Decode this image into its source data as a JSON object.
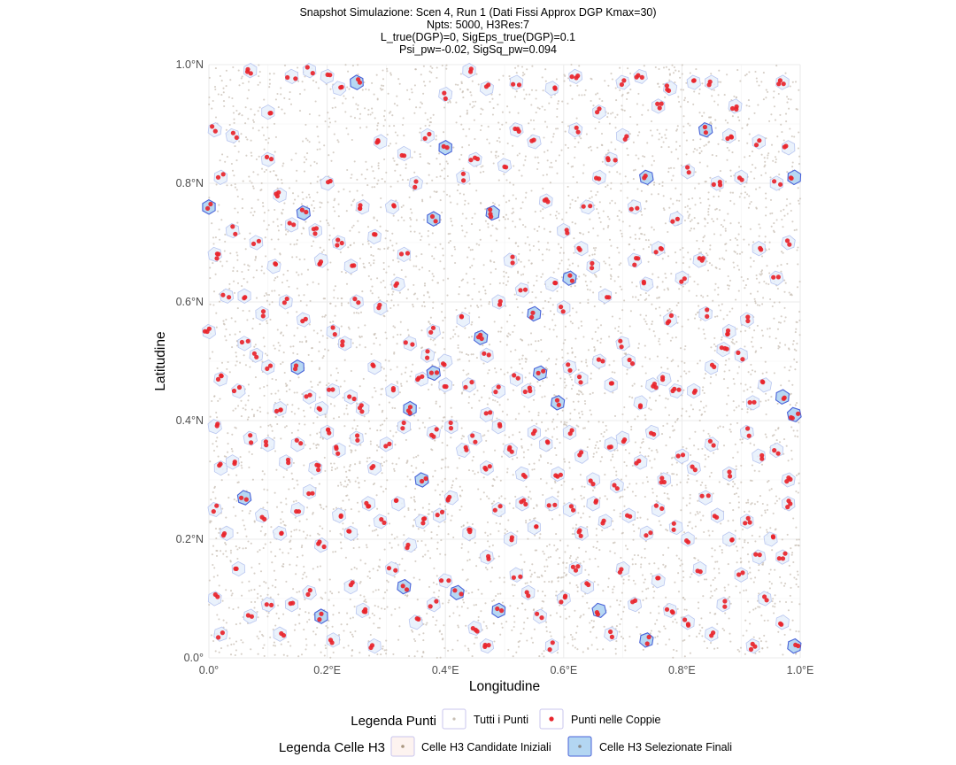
{
  "chart_data": {
    "type": "scatter",
    "title_lines": [
      "Snapshot Simulazione: Scen 4, Run 1 (Dati Fissi Approx DGP Kmax=30)",
      "Npts: 5000, H3Res:7",
      "L_true(DGP)=0, SigEps_true(DGP)=0.1",
      "Psi_pw=-0.02, SigSq_pw=0.094"
    ],
    "xlabel": "Longitudine",
    "ylabel": "Latitudine",
    "xlim": [
      0,
      1
    ],
    "ylim": [
      0,
      1
    ],
    "x_ticks": [
      {
        "value": 0.0,
        "label": "0.0°"
      },
      {
        "value": 0.2,
        "label": "0.2°E"
      },
      {
        "value": 0.4,
        "label": "0.4°E"
      },
      {
        "value": 0.6,
        "label": "0.6°E"
      },
      {
        "value": 0.8,
        "label": "0.8°E"
      },
      {
        "value": 1.0,
        "label": "1.0°E"
      }
    ],
    "y_ticks": [
      {
        "value": 0.0,
        "label": "0.0°"
      },
      {
        "value": 0.2,
        "label": "0.2°N"
      },
      {
        "value": 0.4,
        "label": "0.4°N"
      },
      {
        "value": 0.6,
        "label": "0.6°N"
      },
      {
        "value": 0.8,
        "label": "0.8°N"
      },
      {
        "value": 1.0,
        "label": "1.0°N"
      }
    ],
    "grid": true,
    "legend": {
      "placement": "bottom",
      "points_title": "Legenda Punti",
      "points_entries": [
        "Tutti i Punti",
        "Punti nelle Coppie"
      ],
      "cells_title": "Legenda Celle H3",
      "cells_entries": [
        "Celle H3 Candidate Iniziali",
        "Celle H3 Selezionate Finali"
      ]
    },
    "all_points_count": 5000,
    "colors": {
      "all_points": "#c8bfb4",
      "pair_points": "#e8242b",
      "candidate_cell_fill": "#e6f0fb",
      "candidate_cell_stroke": "#b9c6f0",
      "selected_cell_fill": "#b3d6f2",
      "selected_cell_stroke": "#4a63d8",
      "grid": "#ebebeb"
    },
    "pair_cells": [
      [
        0.0,
        0.76
      ],
      [
        0.02,
        0.81
      ],
      [
        0.04,
        0.72
      ],
      [
        0.06,
        0.61
      ],
      [
        0.08,
        0.7
      ],
      [
        0.1,
        0.84
      ],
      [
        0.12,
        0.78
      ],
      [
        0.14,
        0.73
      ],
      [
        0.16,
        0.75
      ],
      [
        0.18,
        0.72
      ],
      [
        0.2,
        0.8
      ],
      [
        0.22,
        0.7
      ],
      [
        0.24,
        0.66
      ],
      [
        0.26,
        0.76
      ],
      [
        0.28,
        0.71
      ],
      [
        0.31,
        0.76
      ],
      [
        0.33,
        0.68
      ],
      [
        0.35,
        0.8
      ],
      [
        0.38,
        0.74
      ],
      [
        0.4,
        0.86
      ],
      [
        0.43,
        0.81
      ],
      [
        0.45,
        0.84
      ],
      [
        0.48,
        0.75
      ],
      [
        0.5,
        0.83
      ],
      [
        0.52,
        0.89
      ],
      [
        0.55,
        0.87
      ],
      [
        0.57,
        0.77
      ],
      [
        0.6,
        0.72
      ],
      [
        0.62,
        0.89
      ],
      [
        0.64,
        0.76
      ],
      [
        0.66,
        0.81
      ],
      [
        0.68,
        0.84
      ],
      [
        0.7,
        0.88
      ],
      [
        0.72,
        0.76
      ],
      [
        0.74,
        0.81
      ],
      [
        0.76,
        0.93
      ],
      [
        0.79,
        0.74
      ],
      [
        0.81,
        0.82
      ],
      [
        0.84,
        0.89
      ],
      [
        0.86,
        0.8
      ],
      [
        0.88,
        0.88
      ],
      [
        0.9,
        0.81
      ],
      [
        0.93,
        0.87
      ],
      [
        0.96,
        0.8
      ],
      [
        0.98,
        0.86
      ],
      [
        0.99,
        0.81
      ],
      [
        0.01,
        0.89
      ],
      [
        0.04,
        0.88
      ],
      [
        0.07,
        0.99
      ],
      [
        0.1,
        0.92
      ],
      [
        0.14,
        0.98
      ],
      [
        0.17,
        0.99
      ],
      [
        0.2,
        0.98
      ],
      [
        0.22,
        0.96
      ],
      [
        0.25,
        0.97
      ],
      [
        0.29,
        0.87
      ],
      [
        0.33,
        0.85
      ],
      [
        0.37,
        0.88
      ],
      [
        0.4,
        0.95
      ],
      [
        0.44,
        0.99
      ],
      [
        0.47,
        0.96
      ],
      [
        0.52,
        0.97
      ],
      [
        0.58,
        0.96
      ],
      [
        0.62,
        0.98
      ],
      [
        0.66,
        0.92
      ],
      [
        0.7,
        0.97
      ],
      [
        0.73,
        0.98
      ],
      [
        0.78,
        0.96
      ],
      [
        0.82,
        0.97
      ],
      [
        0.85,
        0.97
      ],
      [
        0.89,
        0.93
      ],
      [
        0.97,
        0.97
      ],
      [
        0.01,
        0.68
      ],
      [
        0.03,
        0.61
      ],
      [
        0.06,
        0.53
      ],
      [
        0.09,
        0.58
      ],
      [
        0.11,
        0.66
      ],
      [
        0.13,
        0.6
      ],
      [
        0.16,
        0.57
      ],
      [
        0.19,
        0.67
      ],
      [
        0.21,
        0.55
      ],
      [
        0.23,
        0.53
      ],
      [
        0.25,
        0.6
      ],
      [
        0.29,
        0.59
      ],
      [
        0.32,
        0.63
      ],
      [
        0.34,
        0.53
      ],
      [
        0.37,
        0.51
      ],
      [
        0.38,
        0.55
      ],
      [
        0.4,
        0.5
      ],
      [
        0.43,
        0.57
      ],
      [
        0.46,
        0.54
      ],
      [
        0.47,
        0.51
      ],
      [
        0.49,
        0.6
      ],
      [
        0.51,
        0.67
      ],
      [
        0.53,
        0.62
      ],
      [
        0.55,
        0.58
      ],
      [
        0.58,
        0.63
      ],
      [
        0.6,
        0.59
      ],
      [
        0.61,
        0.64
      ],
      [
        0.63,
        0.69
      ],
      [
        0.65,
        0.66
      ],
      [
        0.67,
        0.61
      ],
      [
        0.7,
        0.53
      ],
      [
        0.72,
        0.67
      ],
      [
        0.74,
        0.63
      ],
      [
        0.76,
        0.69
      ],
      [
        0.78,
        0.57
      ],
      [
        0.8,
        0.64
      ],
      [
        0.83,
        0.67
      ],
      [
        0.84,
        0.58
      ],
      [
        0.88,
        0.55
      ],
      [
        0.91,
        0.57
      ],
      [
        0.93,
        0.69
      ],
      [
        0.96,
        0.64
      ],
      [
        0.98,
        0.7
      ],
      [
        0.0,
        0.55
      ],
      [
        0.02,
        0.47
      ],
      [
        0.05,
        0.45
      ],
      [
        0.08,
        0.51
      ],
      [
        0.1,
        0.49
      ],
      [
        0.12,
        0.42
      ],
      [
        0.15,
        0.49
      ],
      [
        0.17,
        0.44
      ],
      [
        0.19,
        0.42
      ],
      [
        0.21,
        0.45
      ],
      [
        0.24,
        0.44
      ],
      [
        0.26,
        0.42
      ],
      [
        0.28,
        0.49
      ],
      [
        0.31,
        0.45
      ],
      [
        0.34,
        0.42
      ],
      [
        0.36,
        0.47
      ],
      [
        0.38,
        0.48
      ],
      [
        0.4,
        0.46
      ],
      [
        0.44,
        0.46
      ],
      [
        0.47,
        0.41
      ],
      [
        0.49,
        0.45
      ],
      [
        0.52,
        0.47
      ],
      [
        0.54,
        0.45
      ],
      [
        0.56,
        0.48
      ],
      [
        0.59,
        0.43
      ],
      [
        0.61,
        0.49
      ],
      [
        0.63,
        0.47
      ],
      [
        0.66,
        0.5
      ],
      [
        0.68,
        0.46
      ],
      [
        0.71,
        0.5
      ],
      [
        0.73,
        0.43
      ],
      [
        0.75,
        0.46
      ],
      [
        0.77,
        0.47
      ],
      [
        0.79,
        0.45
      ],
      [
        0.82,
        0.45
      ],
      [
        0.85,
        0.49
      ],
      [
        0.87,
        0.52
      ],
      [
        0.9,
        0.51
      ],
      [
        0.92,
        0.43
      ],
      [
        0.94,
        0.46
      ],
      [
        0.97,
        0.44
      ],
      [
        0.99,
        0.41
      ],
      [
        0.01,
        0.39
      ],
      [
        0.02,
        0.32
      ],
      [
        0.04,
        0.33
      ],
      [
        0.07,
        0.37
      ],
      [
        0.1,
        0.36
      ],
      [
        0.13,
        0.33
      ],
      [
        0.15,
        0.36
      ],
      [
        0.18,
        0.32
      ],
      [
        0.2,
        0.38
      ],
      [
        0.22,
        0.35
      ],
      [
        0.25,
        0.37
      ],
      [
        0.28,
        0.32
      ],
      [
        0.3,
        0.36
      ],
      [
        0.33,
        0.39
      ],
      [
        0.36,
        0.3
      ],
      [
        0.38,
        0.38
      ],
      [
        0.41,
        0.39
      ],
      [
        0.43,
        0.35
      ],
      [
        0.45,
        0.37
      ],
      [
        0.47,
        0.32
      ],
      [
        0.49,
        0.39
      ],
      [
        0.51,
        0.35
      ],
      [
        0.53,
        0.31
      ],
      [
        0.55,
        0.38
      ],
      [
        0.57,
        0.36
      ],
      [
        0.59,
        0.31
      ],
      [
        0.61,
        0.38
      ],
      [
        0.63,
        0.34
      ],
      [
        0.65,
        0.3
      ],
      [
        0.68,
        0.36
      ],
      [
        0.7,
        0.37
      ],
      [
        0.73,
        0.33
      ],
      [
        0.75,
        0.38
      ],
      [
        0.77,
        0.3
      ],
      [
        0.8,
        0.34
      ],
      [
        0.82,
        0.32
      ],
      [
        0.85,
        0.36
      ],
      [
        0.88,
        0.31
      ],
      [
        0.91,
        0.38
      ],
      [
        0.93,
        0.34
      ],
      [
        0.96,
        0.35
      ],
      [
        0.98,
        0.3
      ],
      [
        0.01,
        0.25
      ],
      [
        0.03,
        0.21
      ],
      [
        0.06,
        0.27
      ],
      [
        0.09,
        0.24
      ],
      [
        0.12,
        0.21
      ],
      [
        0.15,
        0.25
      ],
      [
        0.17,
        0.28
      ],
      [
        0.19,
        0.19
      ],
      [
        0.22,
        0.24
      ],
      [
        0.24,
        0.21
      ],
      [
        0.27,
        0.26
      ],
      [
        0.29,
        0.23
      ],
      [
        0.32,
        0.26
      ],
      [
        0.34,
        0.19
      ],
      [
        0.36,
        0.23
      ],
      [
        0.39,
        0.24
      ],
      [
        0.41,
        0.27
      ],
      [
        0.44,
        0.21
      ],
      [
        0.47,
        0.17
      ],
      [
        0.49,
        0.25
      ],
      [
        0.51,
        0.2
      ],
      [
        0.53,
        0.26
      ],
      [
        0.55,
        0.22
      ],
      [
        0.58,
        0.26
      ],
      [
        0.61,
        0.25
      ],
      [
        0.63,
        0.21
      ],
      [
        0.65,
        0.26
      ],
      [
        0.67,
        0.23
      ],
      [
        0.69,
        0.29
      ],
      [
        0.71,
        0.24
      ],
      [
        0.74,
        0.21
      ],
      [
        0.76,
        0.25
      ],
      [
        0.79,
        0.22
      ],
      [
        0.81,
        0.2
      ],
      [
        0.84,
        0.27
      ],
      [
        0.86,
        0.24
      ],
      [
        0.88,
        0.2
      ],
      [
        0.91,
        0.23
      ],
      [
        0.93,
        0.17
      ],
      [
        0.95,
        0.2
      ],
      [
        0.98,
        0.26
      ],
      [
        0.01,
        0.1
      ],
      [
        0.02,
        0.04
      ],
      [
        0.05,
        0.15
      ],
      [
        0.07,
        0.07
      ],
      [
        0.1,
        0.09
      ],
      [
        0.12,
        0.04
      ],
      [
        0.14,
        0.09
      ],
      [
        0.17,
        0.11
      ],
      [
        0.19,
        0.07
      ],
      [
        0.21,
        0.03
      ],
      [
        0.24,
        0.12
      ],
      [
        0.26,
        0.08
      ],
      [
        0.28,
        0.02
      ],
      [
        0.31,
        0.15
      ],
      [
        0.33,
        0.12
      ],
      [
        0.35,
        0.06
      ],
      [
        0.38,
        0.09
      ],
      [
        0.4,
        0.13
      ],
      [
        0.42,
        0.11
      ],
      [
        0.45,
        0.05
      ],
      [
        0.47,
        0.02
      ],
      [
        0.49,
        0.08
      ],
      [
        0.52,
        0.14
      ],
      [
        0.54,
        0.11
      ],
      [
        0.56,
        0.07
      ],
      [
        0.58,
        0.02
      ],
      [
        0.6,
        0.1
      ],
      [
        0.62,
        0.15
      ],
      [
        0.64,
        0.12
      ],
      [
        0.66,
        0.08
      ],
      [
        0.68,
        0.04
      ],
      [
        0.7,
        0.15
      ],
      [
        0.72,
        0.09
      ],
      [
        0.74,
        0.03
      ],
      [
        0.76,
        0.13
      ],
      [
        0.78,
        0.08
      ],
      [
        0.81,
        0.06
      ],
      [
        0.83,
        0.15
      ],
      [
        0.85,
        0.04
      ],
      [
        0.87,
        0.09
      ],
      [
        0.9,
        0.14
      ],
      [
        0.92,
        0.02
      ],
      [
        0.94,
        0.1
      ],
      [
        0.97,
        0.06
      ],
      [
        0.99,
        0.02
      ],
      [
        0.97,
        0.17
      ]
    ],
    "selected_cells": [
      [
        0.0,
        0.76
      ],
      [
        0.16,
        0.75
      ],
      [
        0.38,
        0.74
      ],
      [
        0.4,
        0.86
      ],
      [
        0.48,
        0.75
      ],
      [
        0.74,
        0.81
      ],
      [
        0.84,
        0.89
      ],
      [
        0.89,
        0.78
      ],
      [
        0.99,
        0.81
      ],
      [
        0.66,
        0.98
      ],
      [
        0.25,
        0.97
      ],
      [
        0.55,
        0.58
      ],
      [
        0.61,
        0.64
      ],
      [
        0.49,
        0.64
      ],
      [
        0.68,
        0.5
      ],
      [
        0.63,
        0.5
      ],
      [
        0.56,
        0.48
      ],
      [
        0.38,
        0.48
      ],
      [
        0.15,
        0.49
      ],
      [
        0.46,
        0.54
      ],
      [
        0.0,
        0.46
      ],
      [
        0.34,
        0.42
      ],
      [
        0.99,
        0.41
      ],
      [
        0.97,
        0.44
      ],
      [
        0.26,
        0.38
      ],
      [
        0.36,
        0.3
      ],
      [
        0.16,
        0.37
      ],
      [
        0.59,
        0.43
      ],
      [
        0.71,
        0.45
      ],
      [
        0.45,
        0.35
      ],
      [
        0.06,
        0.27
      ],
      [
        0.79,
        0.26
      ],
      [
        0.62,
        0.17
      ],
      [
        0.67,
        0.17
      ],
      [
        0.88,
        0.23
      ],
      [
        0.33,
        0.12
      ],
      [
        0.34,
        0.06
      ],
      [
        0.42,
        0.11
      ],
      [
        0.19,
        0.07
      ],
      [
        0.67,
        0.11
      ],
      [
        0.66,
        0.08
      ],
      [
        0.74,
        0.03
      ],
      [
        0.99,
        0.02
      ],
      [
        0.49,
        0.08
      ],
      [
        0.06,
        0.06
      ]
    ]
  }
}
